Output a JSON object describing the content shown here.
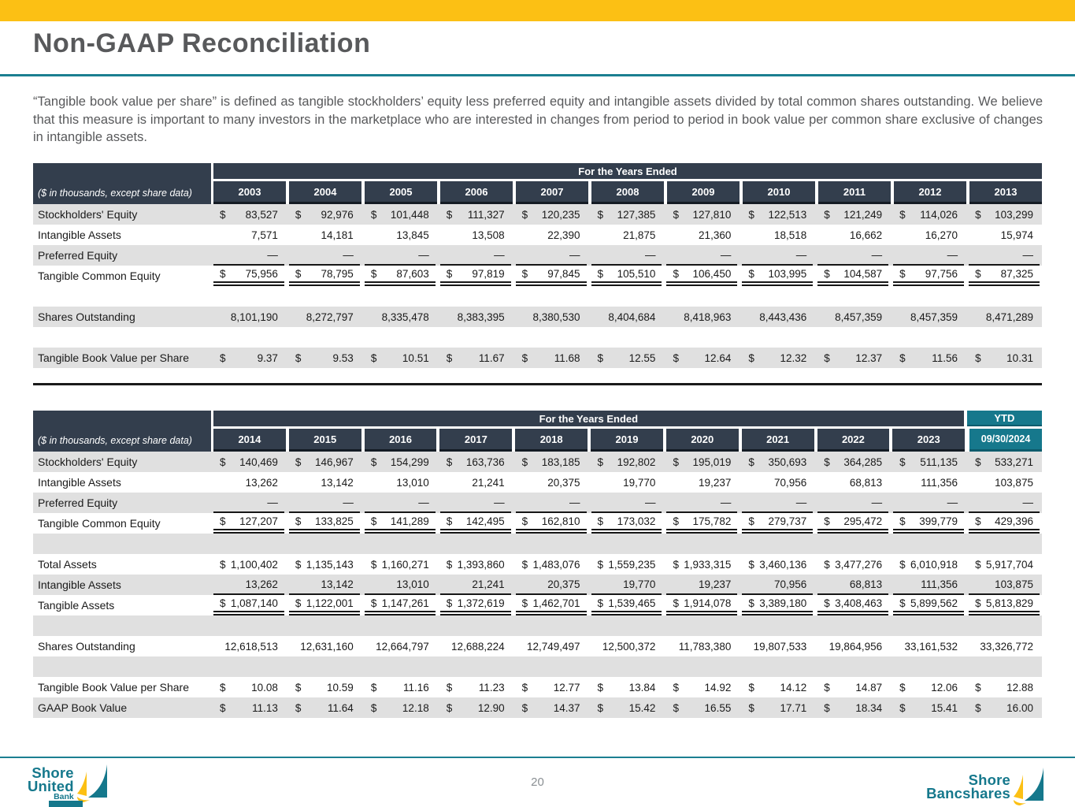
{
  "slide": {
    "title": "Non-GAAP Reconciliation",
    "intro": "“Tangible book value per share” is defined as tangible stockholders’ equity less preferred equity and intangible assets divided by total common shares outstanding. We believe that this measure is important to many investors in the marketplace who are interested in changes from period to period in book value per common share exclusive of changes in intangible assets.",
    "page_number": "20"
  },
  "footer": {
    "left_logo": {
      "line1": "Shore",
      "line2": "United",
      "line3": "Bank"
    },
    "right_logo": {
      "line1": "Shore",
      "line2": "Bancshares"
    }
  },
  "colors": {
    "gold_bar": "#fcc014",
    "teal_accent": "#1b7f91",
    "header_navy": "#333e4d",
    "ytd_teal": "#16788c",
    "row_gray": "#e0e0e0",
    "title_gray": "#58595b"
  },
  "tables": [
    {
      "note": "($ in thousands, except share data)",
      "span_header": "For the Years Ended",
      "columns": [
        "2003",
        "2004",
        "2005",
        "2006",
        "2007",
        "2008",
        "2009",
        "2010",
        "2011",
        "2012",
        "2013"
      ],
      "rows": [
        {
          "label": "Stockholders' Equity",
          "dollar": true,
          "bg": "gray",
          "values": [
            "83,527",
            "92,976",
            "101,448",
            "111,327",
            "120,235",
            "127,385",
            "127,810",
            "122,513",
            "121,249",
            "114,026",
            "103,299"
          ]
        },
        {
          "label": "Intangible Assets",
          "dollar": false,
          "bg": "white",
          "values": [
            "7,571",
            "14,181",
            "13,845",
            "13,508",
            "22,390",
            "21,875",
            "21,360",
            "18,518",
            "16,662",
            "16,270",
            "15,974"
          ]
        },
        {
          "label": "Preferred Equity",
          "dollar": false,
          "bg": "gray",
          "rule": "single",
          "values": [
            "—",
            "—",
            "—",
            "—",
            "—",
            "—",
            "—",
            "—",
            "—",
            "—",
            "—"
          ]
        },
        {
          "label": "Tangible Common Equity",
          "dollar": true,
          "bg": "white",
          "rule": "double",
          "values": [
            "75,956",
            "78,795",
            "87,603",
            "97,819",
            "97,845",
            "105,510",
            "106,450",
            "103,995",
            "104,587",
            "97,756",
            "87,325"
          ]
        },
        {
          "spacer": true,
          "bg": "white"
        },
        {
          "label": "Shares Outstanding",
          "dollar": false,
          "bg": "gray",
          "values": [
            "8,101,190",
            "8,272,797",
            "8,335,478",
            "8,383,395",
            "8,380,530",
            "8,404,684",
            "8,418,963",
            "8,443,436",
            "8,457,359",
            "8,457,359",
            "8,471,289"
          ]
        },
        {
          "spacer": true,
          "bg": "white"
        },
        {
          "label": "Tangible Book Value per Share",
          "dollar": true,
          "bg": "gray",
          "values": [
            "9.37",
            "9.53",
            "10.51",
            "11.67",
            "11.68",
            "12.55",
            "12.64",
            "12.32",
            "12.37",
            "11.56",
            "10.31"
          ]
        }
      ]
    },
    {
      "note": "($ in thousands, except share data)",
      "span_header": "For the Years Ended",
      "ytd": {
        "top": "YTD",
        "label": "09/30/2024"
      },
      "columns": [
        "2014",
        "2015",
        "2016",
        "2017",
        "2018",
        "2019",
        "2020",
        "2021",
        "2022",
        "2023"
      ],
      "rows": [
        {
          "label": "Stockholders' Equity",
          "dollar": true,
          "bg": "gray",
          "values": [
            "140,469",
            "146,967",
            "154,299",
            "163,736",
            "183,185",
            "192,802",
            "195,019",
            "350,693",
            "364,285",
            "511,135",
            "533,271"
          ]
        },
        {
          "label": "Intangible Assets",
          "dollar": false,
          "bg": "white",
          "values": [
            "13,262",
            "13,142",
            "13,010",
            "21,241",
            "20,375",
            "19,770",
            "19,237",
            "70,956",
            "68,813",
            "111,356",
            "103,875"
          ]
        },
        {
          "label": "Preferred Equity",
          "dollar": false,
          "bg": "gray",
          "rule": "single",
          "values": [
            "—",
            "—",
            "—",
            "—",
            "—",
            "—",
            "—",
            "—",
            "—",
            "—",
            "—"
          ]
        },
        {
          "label": "Tangible Common Equity",
          "dollar": true,
          "bg": "white",
          "rule": "double",
          "values": [
            "127,207",
            "133,825",
            "141,289",
            "142,495",
            "162,810",
            "173,032",
            "175,782",
            "279,737",
            "295,472",
            "399,779",
            "429,396"
          ]
        },
        {
          "spacer": true,
          "bg": "gray"
        },
        {
          "label": "Total Assets",
          "dollar": true,
          "bg": "white",
          "values": [
            "1,100,402",
            "1,135,143",
            "1,160,271",
            "1,393,860",
            "1,483,076",
            "1,559,235",
            "1,933,315",
            "3,460,136",
            "3,477,276",
            "6,010,918",
            "5,917,704"
          ]
        },
        {
          "label": "Intangible Assets",
          "dollar": false,
          "bg": "gray",
          "rule": "single",
          "values": [
            "13,262",
            "13,142",
            "13,010",
            "21,241",
            "20,375",
            "19,770",
            "19,237",
            "70,956",
            "68,813",
            "111,356",
            "103,875"
          ]
        },
        {
          "label": "Tangible Assets",
          "dollar": true,
          "bg": "white",
          "rule": "double",
          "values": [
            "1,087,140",
            "1,122,001",
            "1,147,261",
            "1,372,619",
            "1,462,701",
            "1,539,465",
            "1,914,078",
            "3,389,180",
            "3,408,463",
            "5,899,562",
            "5,813,829"
          ]
        },
        {
          "spacer": true,
          "bg": "gray"
        },
        {
          "label": "Shares Outstanding",
          "dollar": false,
          "bg": "white",
          "values": [
            "12,618,513",
            "12,631,160",
            "12,664,797",
            "12,688,224",
            "12,749,497",
            "12,500,372",
            "11,783,380",
            "19,807,533",
            "19,864,956",
            "33,161,532",
            "33,326,772"
          ]
        },
        {
          "spacer": true,
          "bg": "gray"
        },
        {
          "label": "Tangible Book Value per Share",
          "dollar": true,
          "bg": "white",
          "values": [
            "10.08",
            "10.59",
            "11.16",
            "11.23",
            "12.77",
            "13.84",
            "14.92",
            "14.12",
            "14.87",
            "12.06",
            "12.88"
          ]
        },
        {
          "label": "GAAP Book Value",
          "dollar": true,
          "bg": "gray",
          "values": [
            "11.13",
            "11.64",
            "12.18",
            "12.90",
            "14.37",
            "15.42",
            "16.55",
            "17.71",
            "18.34",
            "15.41",
            "16.00"
          ]
        }
      ]
    }
  ]
}
